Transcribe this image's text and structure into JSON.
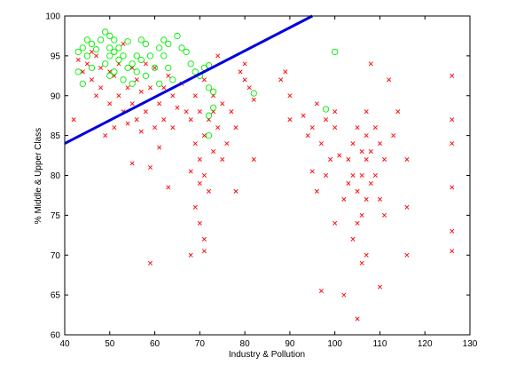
{
  "chart_data": {
    "type": "scatter",
    "title": "",
    "xlabel": "Industry & Pollution",
    "ylabel": "% Middle & Upper Class",
    "xlim": [
      40,
      130
    ],
    "ylim": [
      60,
      100
    ],
    "xticks": [
      40,
      50,
      60,
      70,
      80,
      90,
      100,
      110,
      120,
      130
    ],
    "yticks": [
      60,
      65,
      70,
      75,
      80,
      85,
      90,
      95,
      100
    ],
    "grid": false,
    "legend": "none",
    "colors": {
      "class_a": "#ff0000",
      "class_b": "#00ee00",
      "boundary": "#0000dd"
    },
    "series": [
      {
        "marker": "x",
        "color": "#ff0000",
        "points": [
          [
            42,
            87
          ],
          [
            43,
            94.5
          ],
          [
            44,
            93
          ],
          [
            45,
            94
          ],
          [
            46,
            95.5
          ],
          [
            46,
            92
          ],
          [
            47,
            90
          ],
          [
            47,
            95
          ],
          [
            48,
            93.5
          ],
          [
            48,
            91
          ],
          [
            49,
            85
          ],
          [
            50,
            93
          ],
          [
            50,
            89
          ],
          [
            51,
            92.5
          ],
          [
            51,
            86
          ],
          [
            52,
            94
          ],
          [
            52,
            90
          ],
          [
            53,
            88
          ],
          [
            53,
            96.5
          ],
          [
            54,
            91
          ],
          [
            54,
            86.5
          ],
          [
            55,
            93.5
          ],
          [
            55,
            89
          ],
          [
            55,
            81.5
          ],
          [
            56,
            92
          ],
          [
            56,
            87
          ],
          [
            57,
            90.5
          ],
          [
            57,
            85.5
          ],
          [
            58,
            94
          ],
          [
            58,
            88
          ],
          [
            59,
            69
          ],
          [
            59,
            81
          ],
          [
            59,
            91
          ],
          [
            60,
            86
          ],
          [
            60,
            93.5
          ],
          [
            61,
            89
          ],
          [
            61,
            83.5
          ],
          [
            62,
            91
          ],
          [
            62,
            87
          ],
          [
            63,
            92.5
          ],
          [
            63,
            78.5
          ],
          [
            64,
            90
          ],
          [
            64,
            86
          ],
          [
            65,
            88.5
          ],
          [
            66,
            91.5
          ],
          [
            67,
            88
          ],
          [
            68,
            70
          ],
          [
            68,
            80.5
          ],
          [
            68,
            87
          ],
          [
            69,
            84
          ],
          [
            69,
            90
          ],
          [
            69,
            76
          ],
          [
            70,
            82
          ],
          [
            70,
            88
          ],
          [
            70,
            79
          ],
          [
            70,
            74
          ],
          [
            71,
            85
          ],
          [
            71,
            72
          ],
          [
            71,
            70.5
          ],
          [
            71,
            80
          ],
          [
            71,
            92
          ],
          [
            72,
            87
          ],
          [
            72,
            78
          ],
          [
            73,
            90
          ],
          [
            73,
            83
          ],
          [
            73,
            88
          ],
          [
            74,
            95
          ],
          [
            74,
            86
          ],
          [
            75,
            82
          ],
          [
            75,
            89
          ],
          [
            76,
            84
          ],
          [
            77,
            88
          ],
          [
            78,
            86
          ],
          [
            78,
            78
          ],
          [
            79,
            93
          ],
          [
            80,
            94
          ],
          [
            80,
            92
          ],
          [
            81,
            91
          ],
          [
            82,
            89.5
          ],
          [
            82,
            82
          ],
          [
            88,
            92
          ],
          [
            89,
            93
          ],
          [
            90,
            90
          ],
          [
            90,
            87
          ],
          [
            93,
            87.5
          ],
          [
            94,
            85
          ],
          [
            95,
            86
          ],
          [
            95,
            80.5
          ],
          [
            96,
            89
          ],
          [
            96,
            78
          ],
          [
            97,
            84
          ],
          [
            97,
            65.5
          ],
          [
            98,
            80
          ],
          [
            98,
            87
          ],
          [
            99,
            82
          ],
          [
            100,
            86
          ],
          [
            100,
            88
          ],
          [
            100,
            74
          ],
          [
            101,
            82.5
          ],
          [
            102,
            65
          ],
          [
            102,
            77
          ],
          [
            103,
            79
          ],
          [
            103,
            82
          ],
          [
            104,
            80
          ],
          [
            104,
            84
          ],
          [
            104,
            72
          ],
          [
            105,
            78
          ],
          [
            105,
            62
          ],
          [
            105,
            74
          ],
          [
            105,
            86
          ],
          [
            106,
            80
          ],
          [
            106,
            83
          ],
          [
            106,
            69
          ],
          [
            106,
            75
          ],
          [
            107,
            82
          ],
          [
            107,
            85
          ],
          [
            107,
            77
          ],
          [
            107,
            70
          ],
          [
            107,
            88
          ],
          [
            108,
            83
          ],
          [
            108,
            79
          ],
          [
            108,
            94
          ],
          [
            109,
            80
          ],
          [
            109,
            86
          ],
          [
            110,
            84
          ],
          [
            110,
            77
          ],
          [
            110,
            66
          ],
          [
            111,
            82
          ],
          [
            111,
            75
          ],
          [
            112,
            92
          ],
          [
            113,
            85
          ],
          [
            114,
            88
          ],
          [
            116,
            76
          ],
          [
            116,
            82
          ],
          [
            116,
            70
          ],
          [
            126,
            92.5
          ],
          [
            126,
            87
          ],
          [
            126,
            84
          ],
          [
            126,
            78.5
          ],
          [
            126,
            73
          ],
          [
            126,
            70.5
          ]
        ]
      },
      {
        "marker": "o",
        "color": "#00ee00",
        "points": [
          [
            43,
            95.5
          ],
          [
            43,
            93
          ],
          [
            44,
            96
          ],
          [
            44,
            91.5
          ],
          [
            45,
            95
          ],
          [
            45,
            97
          ],
          [
            46,
            93.5
          ],
          [
            46,
            96.5
          ],
          [
            47,
            95.8
          ],
          [
            48,
            97
          ],
          [
            49,
            98
          ],
          [
            49,
            94
          ],
          [
            50,
            96
          ],
          [
            50,
            97.5
          ],
          [
            50,
            95
          ],
          [
            50,
            92.5
          ],
          [
            51,
            97
          ],
          [
            51,
            95.5
          ],
          [
            51,
            93
          ],
          [
            52,
            96
          ],
          [
            52,
            94.5
          ],
          [
            53,
            92
          ],
          [
            53,
            95
          ],
          [
            54,
            93.5
          ],
          [
            54,
            96.8
          ],
          [
            55,
            94
          ],
          [
            55,
            91.5
          ],
          [
            56,
            95
          ],
          [
            56,
            93
          ],
          [
            57,
            97
          ],
          [
            57,
            94.5
          ],
          [
            58,
            96.5
          ],
          [
            58,
            92.5
          ],
          [
            59,
            95
          ],
          [
            60,
            93.5
          ],
          [
            61,
            96
          ],
          [
            61,
            91.5
          ],
          [
            62,
            97
          ],
          [
            62,
            95
          ],
          [
            63,
            96.5
          ],
          [
            63,
            93.5
          ],
          [
            64,
            92
          ],
          [
            65,
            97.5
          ],
          [
            66,
            96
          ],
          [
            67,
            95.5
          ],
          [
            68,
            94
          ],
          [
            69,
            93
          ],
          [
            70,
            92.5
          ],
          [
            71,
            93.5
          ],
          [
            72,
            91
          ],
          [
            72,
            87.5
          ],
          [
            72,
            93.8
          ],
          [
            73,
            90.5
          ],
          [
            73,
            88.5
          ],
          [
            72,
            85
          ],
          [
            82,
            90.3
          ],
          [
            98,
            88.3
          ],
          [
            100,
            95.5
          ]
        ]
      }
    ],
    "boundary_line": [
      [
        40,
        84
      ],
      [
        95,
        100
      ]
    ]
  }
}
